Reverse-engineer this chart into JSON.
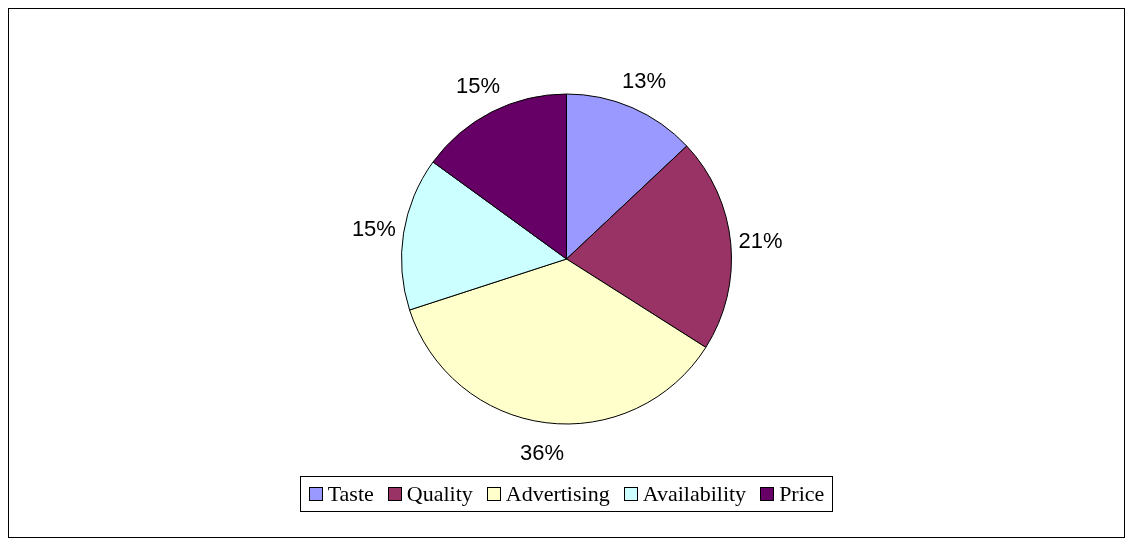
{
  "chart_data": {
    "type": "pie",
    "categories": [
      "Taste",
      "Quality",
      "Advertising",
      "Availability",
      "Price"
    ],
    "values": [
      13,
      21,
      36,
      15,
      15
    ],
    "value_labels": [
      "13%",
      "21%",
      "36%",
      "15%",
      "15%"
    ],
    "colors": [
      "#9999ff",
      "#993366",
      "#ffffcc",
      "#ccffff",
      "#660066"
    ],
    "legend": "bottom"
  }
}
